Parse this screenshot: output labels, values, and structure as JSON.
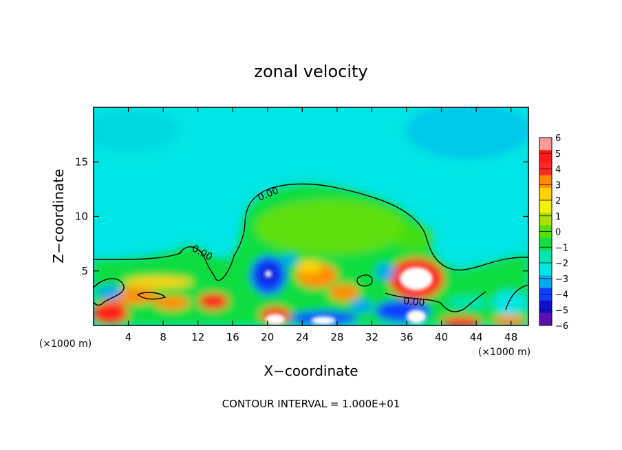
{
  "chart_data": {
    "type": "heatmap",
    "title": "zonal velocity",
    "xlabel": "X−coordinate",
    "ylabel": "Z−coordinate",
    "x_unit_left": "(×1000 m)",
    "x_unit_right": "(×1000 m)",
    "xlim": [
      0,
      50
    ],
    "ylim": [
      0,
      20
    ],
    "xticks": [
      4,
      8,
      12,
      16,
      20,
      24,
      28,
      32,
      36,
      40,
      44,
      48
    ],
    "xtick_labels": [
      "4",
      "8",
      "12",
      "16",
      "20",
      "24",
      "28",
      "32",
      "36",
      "40",
      "44",
      "48"
    ],
    "yticks": [
      5,
      10,
      15
    ],
    "ytick_labels": [
      "5",
      "10",
      "15"
    ],
    "colorbar": {
      "levels": [
        6,
        5,
        4,
        3,
        2,
        1,
        0,
        -1,
        -2,
        -3,
        -4,
        -5,
        -6
      ],
      "labels": [
        "6",
        "5",
        "4",
        "3",
        "2",
        "1",
        "0",
        "−1",
        "−2",
        "−3",
        "−4",
        "−5",
        "−6"
      ],
      "colors": [
        "#ff9a9a",
        "#ff1a1a",
        "#ff2a2a",
        "#ff8c00",
        "#ffd200",
        "#f0f000",
        "#a8e000",
        "#55e000",
        "#10dd40",
        "#00e5b0",
        "#00e5e5",
        "#00a8f0",
        "#1040ff",
        "#1010c8",
        "#5a10b0"
      ]
    },
    "contours": [
      {
        "value": 0.0,
        "label": "0.00"
      }
    ],
    "contour_labels": [
      "0.00",
      "0.00",
      "0.00"
    ],
    "annotation": "CONTOUR INTERVAL = 1.000E+01"
  }
}
